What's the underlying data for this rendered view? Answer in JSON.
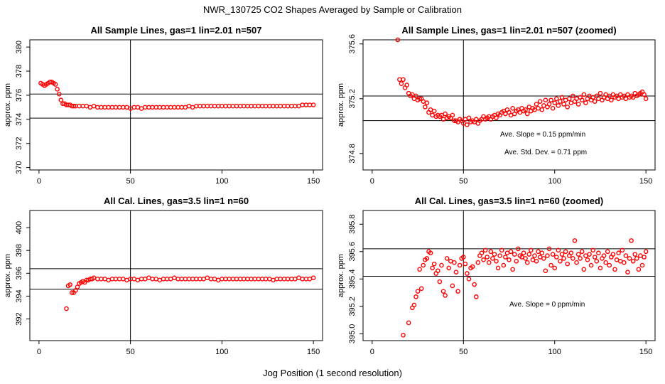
{
  "title": "NWR_130725  CO2 Shapes Averaged by Sample or Calibration",
  "xlabel": "Jog Position (1 second resolution)",
  "chart_data": [
    {
      "type": "scatter",
      "title": "All Sample Lines, gas=1 lin=2.01 n=507",
      "ylabel": "approx. ppm",
      "xlim": [
        -5,
        155
      ],
      "ylim": [
        369.8,
        380.6
      ],
      "xticks": [
        0,
        50,
        100,
        150
      ],
      "yticks": [
        370,
        372,
        374,
        376,
        378,
        380
      ],
      "vline": 50,
      "hlines": [
        374.1,
        376.1
      ],
      "notes": [],
      "series": [
        {
          "name": "sample",
          "x": [
            1,
            2,
            3,
            4,
            5,
            6,
            7,
            8,
            9,
            10,
            11,
            12,
            13,
            14,
            15,
            16,
            17,
            18,
            19,
            20,
            22,
            24,
            26,
            28,
            30,
            32,
            34,
            36,
            38,
            40,
            42,
            44,
            46,
            48,
            50,
            52,
            54,
            56,
            58,
            60,
            62,
            64,
            66,
            68,
            70,
            72,
            74,
            76,
            78,
            80,
            82,
            84,
            86,
            88,
            90,
            92,
            94,
            96,
            98,
            100,
            102,
            104,
            106,
            108,
            110,
            112,
            114,
            116,
            118,
            120,
            122,
            124,
            126,
            128,
            130,
            132,
            134,
            136,
            138,
            140,
            142,
            144,
            146,
            148,
            150
          ],
          "y": [
            377.0,
            376.9,
            376.8,
            376.9,
            377.0,
            377.1,
            377.1,
            377.0,
            376.9,
            376.5,
            376.1,
            375.6,
            375.3,
            375.3,
            375.2,
            375.2,
            375.2,
            375.1,
            375.1,
            375.1,
            375.1,
            375.1,
            375.1,
            375.0,
            375.1,
            375.0,
            375.0,
            375.0,
            375.0,
            375.0,
            375.0,
            375.0,
            375.0,
            375.0,
            374.9,
            375.0,
            375.0,
            374.9,
            375.0,
            375.0,
            375.0,
            375.0,
            375.0,
            375.0,
            375.0,
            375.0,
            375.0,
            375.0,
            375.0,
            375.0,
            375.1,
            375.0,
            375.1,
            375.1,
            375.1,
            375.1,
            375.1,
            375.1,
            375.1,
            375.1,
            375.1,
            375.1,
            375.1,
            375.1,
            375.1,
            375.1,
            375.1,
            375.1,
            375.1,
            375.1,
            375.1,
            375.1,
            375.1,
            375.1,
            375.1,
            375.1,
            375.1,
            375.1,
            375.1,
            375.1,
            375.1,
            375.2,
            375.2,
            375.2,
            375.2
          ]
        }
      ]
    },
    {
      "type": "scatter",
      "title": "All Sample Lines, gas=1 lin=2.01 n=507 (zoomed)",
      "ylabel": "approx. ppm",
      "xlim": [
        -5,
        155
      ],
      "ylim": [
        374.68,
        375.63
      ],
      "xticks": [
        0,
        50,
        100,
        150
      ],
      "yticks": [
        374.8,
        375.2,
        375.6
      ],
      "vline": 50,
      "hlines": [
        375.04,
        375.22
      ],
      "notes": [
        "Ave. Slope =  0.15  ppm/min",
        "Ave. Std. Dev. =  0.71  ppm"
      ],
      "series": [
        {
          "name": "sample",
          "x": [
            14,
            15,
            16,
            17,
            18,
            19,
            20,
            21,
            22,
            23,
            24,
            25,
            26,
            27,
            28,
            29,
            30,
            31,
            32,
            33,
            34,
            35,
            36,
            37,
            38,
            39,
            40,
            41,
            42,
            43,
            44,
            45,
            46,
            47,
            48,
            49,
            50,
            51,
            52,
            53,
            54,
            55,
            56,
            57,
            58,
            59,
            60,
            61,
            62,
            63,
            64,
            65,
            66,
            67,
            68,
            69,
            70,
            71,
            72,
            73,
            74,
            75,
            76,
            77,
            78,
            79,
            80,
            81,
            82,
            83,
            84,
            85,
            86,
            87,
            88,
            89,
            90,
            91,
            92,
            93,
            94,
            95,
            96,
            97,
            98,
            99,
            100,
            101,
            102,
            103,
            104,
            105,
            106,
            107,
            108,
            109,
            110,
            111,
            112,
            113,
            114,
            115,
            116,
            117,
            118,
            119,
            120,
            121,
            122,
            123,
            124,
            125,
            126,
            127,
            128,
            129,
            130,
            131,
            132,
            133,
            134,
            135,
            136,
            137,
            138,
            139,
            140,
            141,
            142,
            143,
            144,
            145,
            146,
            147,
            148,
            149,
            150
          ],
          "y": [
            375.63,
            375.34,
            375.31,
            375.34,
            375.28,
            375.3,
            375.24,
            375.22,
            375.23,
            375.2,
            375.22,
            375.19,
            375.2,
            375.2,
            375.18,
            375.14,
            375.17,
            375.1,
            375.12,
            375.08,
            375.11,
            375.07,
            375.08,
            375.07,
            375.08,
            375.05,
            375.09,
            375.06,
            375.07,
            375.06,
            375.08,
            375.04,
            375.04,
            375.03,
            375.05,
            375.04,
            375.02,
            375.05,
            375.01,
            375.06,
            375.03,
            375.04,
            375.03,
            375.05,
            375.02,
            375.04,
            375.05,
            375.07,
            375.05,
            375.06,
            375.07,
            375.05,
            375.07,
            375.08,
            375.06,
            375.09,
            375.08,
            375.1,
            375.11,
            375.09,
            375.12,
            375.1,
            375.08,
            375.13,
            375.09,
            375.11,
            375.12,
            375.1,
            375.13,
            375.11,
            375.12,
            375.09,
            375.14,
            375.11,
            375.13,
            375.12,
            375.16,
            375.13,
            375.18,
            375.12,
            375.15,
            375.19,
            375.14,
            375.16,
            375.19,
            375.13,
            375.17,
            375.2,
            375.15,
            375.18,
            375.21,
            375.16,
            375.19,
            375.14,
            375.2,
            375.17,
            375.22,
            375.18,
            375.2,
            375.16,
            375.21,
            375.19,
            375.23,
            375.17,
            375.2,
            375.22,
            375.19,
            375.21,
            375.18,
            375.22,
            375.2,
            375.24,
            375.19,
            375.21,
            375.23,
            375.2,
            375.22,
            375.19,
            375.23,
            375.21,
            375.22,
            375.2,
            375.23,
            375.21,
            375.22,
            375.2,
            375.23,
            375.21,
            375.22,
            375.21,
            375.24,
            375.22,
            375.23,
            375.24,
            375.25,
            375.23,
            375.2
          ]
        }
      ]
    },
    {
      "type": "scatter",
      "title": "All Cal. Lines, gas=3.5 lin=1 n=60",
      "ylabel": "approx. ppm",
      "xlim": [
        -5,
        155
      ],
      "ylim": [
        390.1,
        401.5
      ],
      "xticks": [
        0,
        50,
        100,
        150
      ],
      "yticks": [
        392,
        394,
        396,
        398,
        400
      ],
      "vline": 50,
      "hlines": [
        394.6,
        396.4
      ],
      "notes": [],
      "series": [
        {
          "name": "cal",
          "x": [
            15,
            16,
            17,
            18,
            19,
            20,
            21,
            22,
            23,
            24,
            25,
            26,
            27,
            28,
            29,
            30,
            32,
            34,
            36,
            38,
            40,
            42,
            44,
            46,
            48,
            50,
            52,
            54,
            56,
            58,
            60,
            62,
            64,
            66,
            68,
            70,
            72,
            74,
            76,
            78,
            80,
            82,
            84,
            86,
            88,
            90,
            92,
            94,
            96,
            98,
            100,
            102,
            104,
            106,
            108,
            110,
            112,
            114,
            116,
            118,
            120,
            122,
            124,
            126,
            128,
            130,
            132,
            134,
            136,
            138,
            140,
            142,
            144,
            146,
            148,
            150
          ],
          "y": [
            392.9,
            394.9,
            395.0,
            394.3,
            394.3,
            394.5,
            394.8,
            395.1,
            395.2,
            395.3,
            395.2,
            395.4,
            395.4,
            395.5,
            395.5,
            395.6,
            395.5,
            395.5,
            395.5,
            395.4,
            395.5,
            395.5,
            395.5,
            395.5,
            395.4,
            395.5,
            395.5,
            395.4,
            395.5,
            395.5,
            395.6,
            395.5,
            395.5,
            395.4,
            395.5,
            395.5,
            395.5,
            395.6,
            395.5,
            395.5,
            395.5,
            395.5,
            395.5,
            395.5,
            395.5,
            395.5,
            395.6,
            395.5,
            395.5,
            395.4,
            395.5,
            395.5,
            395.5,
            395.5,
            395.5,
            395.5,
            395.5,
            395.5,
            395.5,
            395.5,
            395.5,
            395.5,
            395.5,
            395.5,
            395.4,
            395.5,
            395.5,
            395.5,
            395.5,
            395.5,
            395.5,
            395.6,
            395.5,
            395.5,
            395.5,
            395.6
          ]
        }
      ]
    },
    {
      "type": "scatter",
      "title": "All Cal. Lines, gas=3.5 lin=1 n=60 (zoomed)",
      "ylabel": "approx. ppm",
      "xlim": [
        -5,
        155
      ],
      "ylim": [
        394.95,
        395.9
      ],
      "xticks": [
        0,
        50,
        100,
        150
      ],
      "yticks": [
        395.0,
        395.2,
        395.4,
        395.6,
        395.8
      ],
      "vline": 50,
      "hlines": [
        395.42,
        395.62
      ],
      "notes": [
        "Ave. Slope =  0  ppm/min"
      ],
      "series": [
        {
          "name": "cal",
          "x": [
            17,
            20,
            22,
            23,
            24,
            25,
            26,
            27,
            28,
            29,
            30,
            31,
            32,
            33,
            34,
            35,
            36,
            37,
            38,
            39,
            40,
            41,
            42,
            43,
            44,
            45,
            46,
            47,
            48,
            49,
            50,
            51,
            52,
            53,
            54,
            55,
            56,
            57,
            58,
            59,
            60,
            61,
            62,
            63,
            64,
            65,
            66,
            67,
            68,
            69,
            70,
            71,
            72,
            73,
            74,
            75,
            76,
            77,
            78,
            79,
            80,
            81,
            82,
            83,
            84,
            85,
            86,
            87,
            88,
            89,
            90,
            91,
            92,
            93,
            94,
            95,
            96,
            97,
            98,
            99,
            100,
            101,
            102,
            103,
            104,
            105,
            106,
            107,
            108,
            109,
            110,
            111,
            112,
            113,
            114,
            115,
            116,
            117,
            118,
            119,
            120,
            121,
            122,
            123,
            124,
            125,
            126,
            127,
            128,
            129,
            130,
            131,
            132,
            133,
            134,
            135,
            136,
            137,
            138,
            139,
            140,
            141,
            142,
            143,
            144,
            145,
            146,
            147,
            148,
            149,
            150
          ],
          "y": [
            394.99,
            395.08,
            395.19,
            395.21,
            395.27,
            395.31,
            395.47,
            395.33,
            395.5,
            395.54,
            395.55,
            395.6,
            395.59,
            395.48,
            395.51,
            395.44,
            395.46,
            395.38,
            395.5,
            395.31,
            395.28,
            395.55,
            395.48,
            395.53,
            395.35,
            395.52,
            395.45,
            395.31,
            395.5,
            395.55,
            395.56,
            395.51,
            395.44,
            395.4,
            395.48,
            395.49,
            395.36,
            395.27,
            395.52,
            395.57,
            395.59,
            395.54,
            395.61,
            395.56,
            395.52,
            395.6,
            395.55,
            395.58,
            395.53,
            395.48,
            395.57,
            395.61,
            395.5,
            395.56,
            395.59,
            395.54,
            395.6,
            395.47,
            395.58,
            395.53,
            395.62,
            395.57,
            395.56,
            395.59,
            395.55,
            395.52,
            395.58,
            395.61,
            395.54,
            395.57,
            395.53,
            395.6,
            395.56,
            395.59,
            395.55,
            395.46,
            395.57,
            395.62,
            395.5,
            395.58,
            395.48,
            395.56,
            395.61,
            395.53,
            395.58,
            395.55,
            395.6,
            395.51,
            395.57,
            395.59,
            395.55,
            395.68,
            395.52,
            395.58,
            395.55,
            395.6,
            395.47,
            395.57,
            395.54,
            395.58,
            395.5,
            395.61,
            395.56,
            395.53,
            395.59,
            395.48,
            395.55,
            395.57,
            395.52,
            395.6,
            395.5,
            395.56,
            395.58,
            395.47,
            395.54,
            395.59,
            395.53,
            395.61,
            395.52,
            395.57,
            395.45,
            395.55,
            395.68,
            395.53,
            395.58,
            395.55,
            395.47,
            395.57,
            395.5,
            395.56,
            395.6
          ]
        }
      ]
    }
  ]
}
